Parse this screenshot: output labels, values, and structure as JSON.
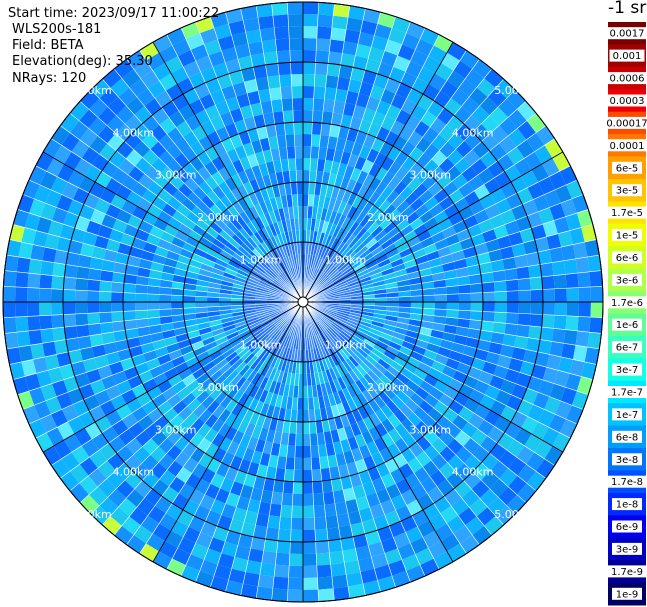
{
  "header": {
    "start_time": "Start time: 2023/09/17 11:00:22",
    "instrument": "WLS200s-181",
    "field": "Field: BETA",
    "elevation": "Elevation(deg): 35.30",
    "nrays": "NRays: 120"
  },
  "colorbar": {
    "unit_label": "-1 sr",
    "labels": [
      "0.0017",
      "0.001",
      "0.0006",
      "0.0003",
      "0.00017",
      "0.0001",
      "6e-5",
      "3e-5",
      "1.7e-5",
      "1e-5",
      "6e-6",
      "3e-6",
      "1.7e-6",
      "1e-6",
      "6e-7",
      "3e-7",
      "1.7e-7",
      "1e-7",
      "6e-8",
      "3e-8",
      "1.7e-8",
      "1e-8",
      "6e-9",
      "3e-9",
      "1.7e-9",
      "1e-9"
    ],
    "colors": [
      "#7a0000",
      "#a00000",
      "#c80000",
      "#ee0000",
      "#ff4a00",
      "#ff7800",
      "#ffa000",
      "#ffc400",
      "#ffe400",
      "#f0ff00",
      "#d2ff22",
      "#b0ff4a",
      "#8aff70",
      "#60ff96",
      "#3affc0",
      "#14ffe6",
      "#00e8ff",
      "#00c2ff",
      "#009cff",
      "#0076ff",
      "#0050ff",
      "#002aff",
      "#0000f0",
      "#0000c4",
      "#000098",
      "#000066"
    ]
  },
  "chart_data": {
    "type": "polar_ppi",
    "field": "BETA",
    "range_ring_labels": [
      "1.00km",
      "2.00km",
      "3.00km",
      "4.00km",
      "5.00km"
    ],
    "range_rings_km": [
      1,
      2,
      3,
      4,
      5
    ],
    "max_range_km": 5.0,
    "nrays": 120,
    "elevation_deg": 35.3,
    "start_time": "2023/09/17 11:00:22",
    "color_scale": "log",
    "value_range": [
      1e-09,
      0.0017
    ],
    "dominant_value_range": [
      1e-08,
      1e-07
    ],
    "grid": true
  }
}
